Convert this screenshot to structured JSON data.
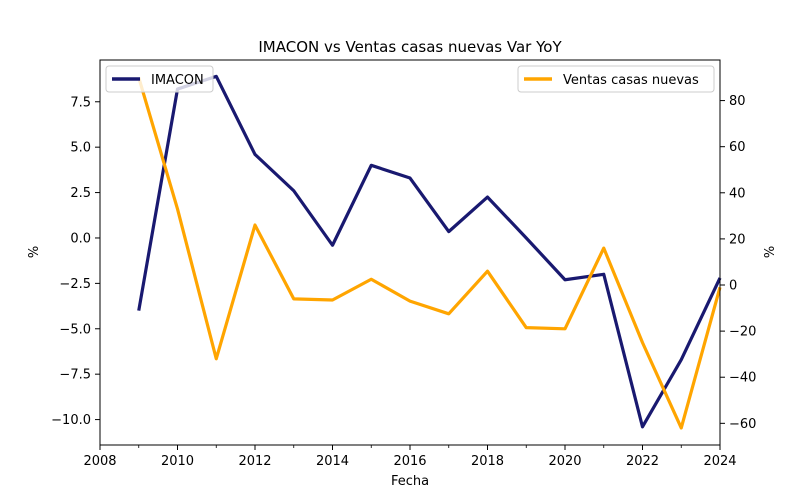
{
  "chart_data": {
    "type": "line",
    "title": "IMACON vs Ventas casas nuevas Var YoY",
    "xlabel": "Fecha",
    "ylabel_left": "%",
    "ylabel_right": "%",
    "xlim": [
      2008,
      2024
    ],
    "ylim_left": [
      -11.4,
      9.8
    ],
    "ylim_right": [
      -69.4,
      97.6
    ],
    "x_ticks": [
      "2008",
      "2010",
      "2012",
      "2014",
      "2016",
      "2018",
      "2020",
      "2022",
      "2024"
    ],
    "y_left_ticks": [
      "−10.0",
      "−7.5",
      "−5.0",
      "−2.5",
      "0.0",
      "2.5",
      "5.0",
      "7.5"
    ],
    "y_right_ticks": [
      "−60",
      "−40",
      "−20",
      "0",
      "20",
      "40",
      "60",
      "80"
    ],
    "x_tick_values": [
      2008,
      2010,
      2012,
      2014,
      2016,
      2018,
      2020,
      2022,
      2024
    ],
    "y_left_tick_values": [
      -10,
      -7.5,
      -5,
      -2.5,
      0,
      2.5,
      5,
      7.5
    ],
    "y_right_tick_values": [
      -60,
      -40,
      -20,
      0,
      20,
      40,
      60,
      80
    ],
    "grid": false,
    "series": [
      {
        "name": "IMACON",
        "axis": "left",
        "color": "#191970",
        "legend_position": "upper left",
        "x": [
          2009,
          2010,
          2011,
          2012,
          2013,
          2014,
          2015,
          2016,
          2017,
          2018,
          2019,
          2020,
          2021,
          2022,
          2023,
          2024
        ],
        "values": [
          -4.0,
          8.2,
          8.9,
          4.6,
          2.6,
          -0.4,
          4.0,
          3.3,
          0.35,
          2.25,
          0.0,
          -2.3,
          -2.0,
          -10.4,
          -6.7,
          -2.2
        ]
      },
      {
        "name": "Ventas casas nuevas",
        "axis": "right",
        "color": "#FFA500",
        "legend_position": "upper right",
        "x": [
          2009,
          2010,
          2011,
          2012,
          2013,
          2014,
          2015,
          2016,
          2017,
          2018,
          2019,
          2020,
          2021,
          2022,
          2023,
          2024
        ],
        "values": [
          90,
          33,
          -32,
          26,
          -6,
          -6.5,
          2.5,
          -7,
          -12.5,
          6,
          -18.5,
          -19,
          16,
          -25,
          -62,
          -1
        ]
      }
    ]
  }
}
